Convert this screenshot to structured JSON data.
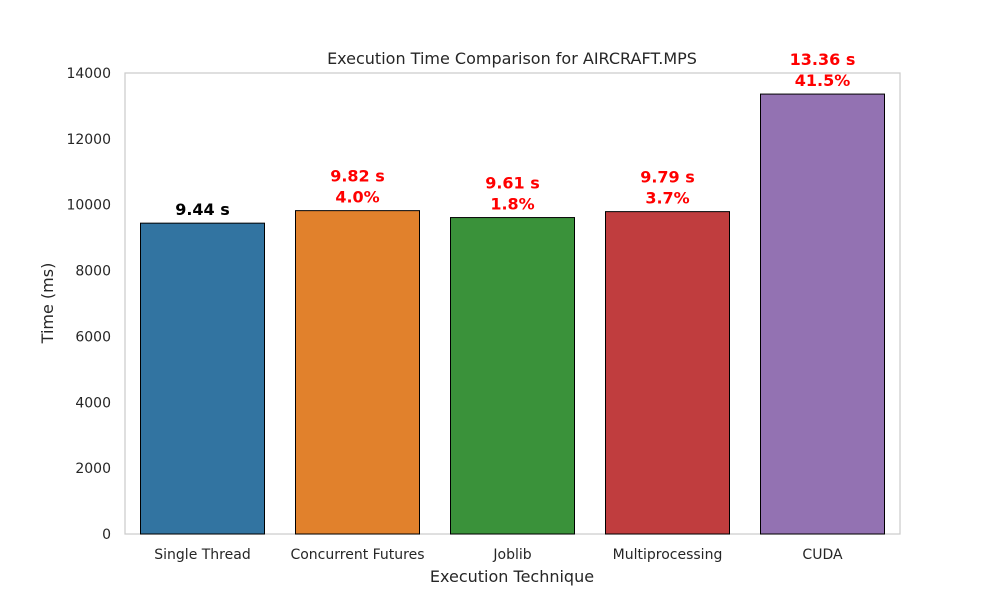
{
  "chart_data": {
    "type": "bar",
    "title": "Execution Time Comparison for AIRCRAFT.MPS",
    "xlabel": "Execution Technique",
    "ylabel": "Time (ms)",
    "ylim": [
      0,
      14000
    ],
    "yticks": [
      0,
      2000,
      4000,
      6000,
      8000,
      10000,
      12000,
      14000
    ],
    "grid": false,
    "categories": [
      "Single Thread",
      "Concurrent Futures",
      "Joblib",
      "Multiprocessing",
      "CUDA"
    ],
    "values": [
      9440,
      9820,
      9610,
      9790,
      13360
    ],
    "colors": [
      "#3274a1",
      "#e1812c",
      "#3a923a",
      "#c03d3e",
      "#9372b2"
    ],
    "bar_labels": [
      {
        "lines": [
          "9.44 s"
        ],
        "color": "#000000"
      },
      {
        "lines": [
          "9.82 s",
          "4.0%"
        ],
        "color": "#ff0000"
      },
      {
        "lines": [
          "9.61 s",
          "1.8%"
        ],
        "color": "#ff0000"
      },
      {
        "lines": [
          "9.79 s",
          "3.7%"
        ],
        "color": "#ff0000"
      },
      {
        "lines": [
          "13.36 s",
          "41.5%"
        ],
        "color": "#ff0000"
      }
    ]
  }
}
